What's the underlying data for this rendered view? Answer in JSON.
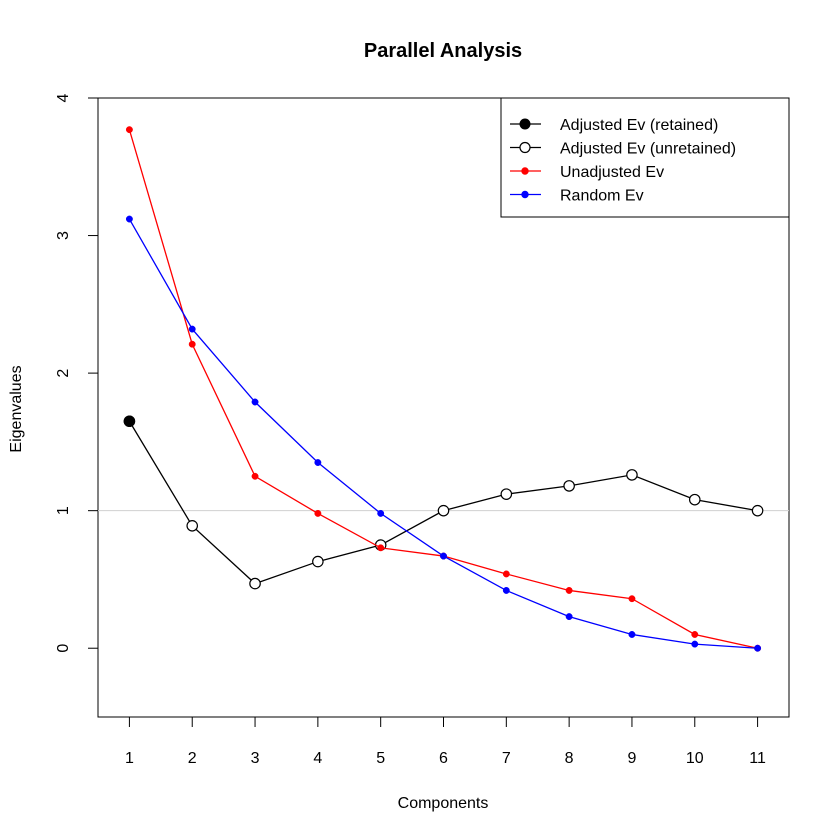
{
  "chart_data": {
    "type": "line",
    "title": "Parallel Analysis",
    "xlabel": "Components",
    "ylabel": "Eigenvalues",
    "xlim": [
      0.5,
      11.5
    ],
    "ylim": [
      -0.5,
      4
    ],
    "x_ticks": [
      1,
      2,
      3,
      4,
      5,
      6,
      7,
      8,
      9,
      10,
      11
    ],
    "y_ticks": [
      0,
      1,
      2,
      3,
      4
    ],
    "reference_line": {
      "y": 1,
      "color": "#d0d0d0"
    },
    "grid": false,
    "legend_position": "top-right",
    "x": [
      1,
      2,
      3,
      4,
      5,
      6,
      7,
      8,
      9,
      10,
      11
    ],
    "series": [
      {
        "name": "Adjusted Ev (retained)",
        "color": "#000000",
        "marker": "filled-circle",
        "line": false,
        "x": [
          1
        ],
        "values": [
          1.65
        ]
      },
      {
        "name": "Adjusted Ev (unretained)",
        "color": "#000000",
        "marker": "open-circle",
        "line": true,
        "values": [
          1.65,
          0.89,
          0.47,
          0.63,
          0.75,
          1.0,
          1.12,
          1.18,
          1.26,
          1.08,
          1.0
        ]
      },
      {
        "name": "Unadjusted Ev",
        "color": "#ff0000",
        "marker": "small-dot",
        "line": true,
        "values": [
          3.77,
          2.21,
          1.25,
          0.98,
          0.73,
          0.67,
          0.54,
          0.42,
          0.36,
          0.1,
          0.0
        ]
      },
      {
        "name": "Random Ev",
        "color": "#0000ff",
        "marker": "small-dot",
        "line": true,
        "values": [
          3.12,
          2.32,
          1.79,
          1.35,
          0.98,
          0.67,
          0.42,
          0.23,
          0.1,
          0.03,
          0.0
        ]
      }
    ]
  }
}
